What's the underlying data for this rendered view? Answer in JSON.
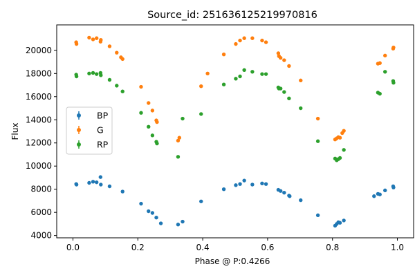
{
  "chart_data": {
    "type": "scatter",
    "title": "Source_id: 251636125219970816",
    "xlabel": "Phase @ P:0.4266",
    "ylabel": "Flux",
    "xlim": [
      -0.05,
      1.05
    ],
    "ylim": [
      3800,
      22200
    ],
    "xticks": [
      0.0,
      0.2,
      0.4,
      0.6,
      0.8,
      1.0
    ],
    "xtick_labels": [
      "0.0",
      "0.2",
      "0.4",
      "0.6",
      "0.8",
      "1.0"
    ],
    "yticks": [
      4000,
      6000,
      8000,
      10000,
      12000,
      14000,
      16000,
      18000,
      20000
    ],
    "ytick_labels": [
      "4000",
      "6000",
      "8000",
      "10000",
      "12000",
      "14000",
      "16000",
      "18000",
      "20000"
    ],
    "grid": false,
    "legend_position": "center-left",
    "series": [
      {
        "name": "BP",
        "color": "#1f77b4",
        "points": [
          [
            0.01,
            8450
          ],
          [
            0.011,
            8400
          ],
          [
            0.05,
            8550
          ],
          [
            0.062,
            8650
          ],
          [
            0.073,
            8600
          ],
          [
            0.085,
            9050
          ],
          [
            0.086,
            8400
          ],
          [
            0.113,
            8250
          ],
          [
            0.153,
            7800
          ],
          [
            0.21,
            6750
          ],
          [
            0.233,
            6100
          ],
          [
            0.245,
            5950
          ],
          [
            0.257,
            5550
          ],
          [
            0.271,
            5050
          ],
          [
            0.324,
            4950
          ],
          [
            0.338,
            5200
          ],
          [
            0.395,
            6950
          ],
          [
            0.465,
            8000
          ],
          [
            0.502,
            8350
          ],
          [
            0.515,
            8450
          ],
          [
            0.528,
            8750
          ],
          [
            0.553,
            8400
          ],
          [
            0.583,
            8500
          ],
          [
            0.595,
            8450
          ],
          [
            0.633,
            7950
          ],
          [
            0.64,
            7850
          ],
          [
            0.651,
            7700
          ],
          [
            0.666,
            7450
          ],
          [
            0.668,
            7400
          ],
          [
            0.702,
            7050
          ],
          [
            0.755,
            5750
          ],
          [
            0.808,
            4850
          ],
          [
            0.813,
            5000
          ],
          [
            0.818,
            5150
          ],
          [
            0.823,
            5100
          ],
          [
            0.835,
            5300
          ],
          [
            0.928,
            7400
          ],
          [
            0.94,
            7600
          ],
          [
            0.946,
            7550
          ],
          [
            0.962,
            7900
          ],
          [
            0.987,
            8250
          ],
          [
            0.988,
            8150
          ]
        ]
      },
      {
        "name": "G",
        "color": "#ff7f0e",
        "points": [
          [
            0.01,
            20700
          ],
          [
            0.011,
            20550
          ],
          [
            0.05,
            21100
          ],
          [
            0.062,
            20950
          ],
          [
            0.073,
            21050
          ],
          [
            0.085,
            20750
          ],
          [
            0.086,
            20900
          ],
          [
            0.113,
            20350
          ],
          [
            0.135,
            19800
          ],
          [
            0.148,
            19400
          ],
          [
            0.153,
            19250
          ],
          [
            0.21,
            16850
          ],
          [
            0.233,
            15450
          ],
          [
            0.245,
            14800
          ],
          [
            0.257,
            13950
          ],
          [
            0.259,
            13800
          ],
          [
            0.324,
            12200
          ],
          [
            0.328,
            12450
          ],
          [
            0.395,
            16900
          ],
          [
            0.415,
            18000
          ],
          [
            0.465,
            19650
          ],
          [
            0.502,
            20550
          ],
          [
            0.515,
            20850
          ],
          [
            0.528,
            21050
          ],
          [
            0.553,
            21050
          ],
          [
            0.583,
            20850
          ],
          [
            0.595,
            20700
          ],
          [
            0.633,
            19750
          ],
          [
            0.635,
            19500
          ],
          [
            0.64,
            19350
          ],
          [
            0.651,
            19150
          ],
          [
            0.666,
            18650
          ],
          [
            0.702,
            17400
          ],
          [
            0.755,
            14100
          ],
          [
            0.808,
            12300
          ],
          [
            0.813,
            12400
          ],
          [
            0.818,
            12500
          ],
          [
            0.823,
            12450
          ],
          [
            0.83,
            12850
          ],
          [
            0.835,
            13050
          ],
          [
            0.94,
            18850
          ],
          [
            0.946,
            18900
          ],
          [
            0.962,
            19550
          ],
          [
            0.987,
            20150
          ],
          [
            0.988,
            20250
          ]
        ]
      },
      {
        "name": "RP",
        "color": "#2ca02c",
        "points": [
          [
            0.01,
            17900
          ],
          [
            0.011,
            17750
          ],
          [
            0.05,
            18000
          ],
          [
            0.062,
            18050
          ],
          [
            0.073,
            17950
          ],
          [
            0.085,
            18050
          ],
          [
            0.086,
            17850
          ],
          [
            0.113,
            17450
          ],
          [
            0.135,
            16950
          ],
          [
            0.153,
            16450
          ],
          [
            0.21,
            14600
          ],
          [
            0.233,
            13400
          ],
          [
            0.245,
            12650
          ],
          [
            0.257,
            12100
          ],
          [
            0.259,
            11950
          ],
          [
            0.324,
            10800
          ],
          [
            0.338,
            14100
          ],
          [
            0.395,
            14500
          ],
          [
            0.465,
            17050
          ],
          [
            0.502,
            17550
          ],
          [
            0.515,
            17750
          ],
          [
            0.528,
            18300
          ],
          [
            0.553,
            18150
          ],
          [
            0.583,
            17950
          ],
          [
            0.595,
            17950
          ],
          [
            0.633,
            16800
          ],
          [
            0.635,
            16700
          ],
          [
            0.64,
            16700
          ],
          [
            0.651,
            16400
          ],
          [
            0.666,
            15850
          ],
          [
            0.702,
            15000
          ],
          [
            0.755,
            12150
          ],
          [
            0.808,
            10650
          ],
          [
            0.813,
            10500
          ],
          [
            0.818,
            10600
          ],
          [
            0.823,
            10700
          ],
          [
            0.835,
            11400
          ],
          [
            0.94,
            16350
          ],
          [
            0.946,
            16250
          ],
          [
            0.962,
            18150
          ],
          [
            0.987,
            17350
          ],
          [
            0.988,
            17200
          ]
        ]
      }
    ]
  }
}
